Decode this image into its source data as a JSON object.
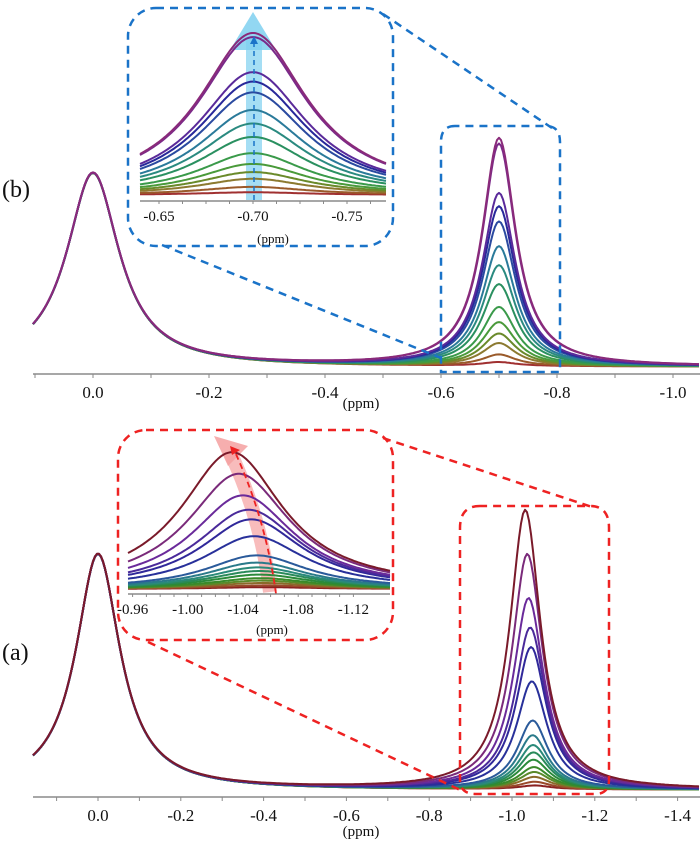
{
  "chart_data": [
    {
      "id": "panel-b",
      "type": "line",
      "panel_label": "(b)",
      "xlabel": "(ppm)",
      "xlim": [
        0.1,
        -1.04
      ],
      "x_ticks": [
        0.0,
        -0.2,
        -0.4,
        -0.6,
        -0.8,
        -1.0
      ],
      "x_tick_labels": [
        "0.0",
        "-0.2",
        "-0.4",
        "-0.6",
        "-0.8",
        "-1.0"
      ],
      "reference_peak": {
        "position_ppm": 0.0,
        "relative_height": 1.0,
        "width_ppm": 0.055
      },
      "series_peak_position_ppm": [
        -0.7,
        -0.7,
        -0.7,
        -0.7,
        -0.7,
        -0.7,
        -0.7,
        -0.7,
        -0.7,
        -0.7,
        -0.7,
        -0.7,
        -0.7,
        -0.7
      ],
      "series_relative_heights": [
        0.02,
        0.06,
        0.12,
        0.17,
        0.23,
        0.31,
        0.43,
        0.53,
        0.63,
        0.76,
        0.84,
        0.91,
        1.17,
        1.2
      ],
      "series_colors": [
        "#a03030",
        "#9a5a2a",
        "#8c7a30",
        "#6a8a2a",
        "#4a9a3a",
        "#3a9a4a",
        "#2a9060",
        "#2a8a80",
        "#2a7a9a",
        "#2a4aa0",
        "#28289a",
        "#5a2a9a",
        "#7a2a8a",
        "#8a2a7a"
      ],
      "series_width_ppm": 0.035,
      "zoom_box_ppm": [
        -0.6,
        -0.8
      ],
      "trend": "increasing peak height at constant shift",
      "arrow_color": "#7fd0f0",
      "box_color": "#1a73c8",
      "inset": {
        "xlim": [
          -0.64,
          -0.765
        ],
        "x_ticks": [
          -0.65,
          -0.7,
          -0.75
        ],
        "x_tick_labels": [
          "-0.65",
          "-0.70",
          "-0.75"
        ],
        "xlabel": "(ppm)"
      }
    },
    {
      "id": "panel-a",
      "type": "line",
      "panel_label": "(a)",
      "xlabel": "(ppm)",
      "xlim": [
        0.15,
        -1.46
      ],
      "x_ticks": [
        0.0,
        -0.2,
        -0.4,
        -0.6,
        -0.8,
        -1.0,
        -1.2,
        -1.4
      ],
      "x_tick_labels": [
        "0.0",
        "-0.2",
        "-0.4",
        "-0.6",
        "-0.8",
        "-1.0",
        "-1.2",
        "-1.4"
      ],
      "reference_peak": {
        "position_ppm": 0.0,
        "relative_height": 1.0,
        "width_ppm": 0.065
      },
      "series_peak_position_ppm": [
        -1.055,
        -1.055,
        -1.054,
        -1.054,
        -1.053,
        -1.052,
        -1.052,
        -1.051,
        -1.05,
        -1.05,
        -1.048,
        -1.046,
        -1.044,
        -1.04,
        -1.037,
        -1.032
      ],
      "series_relative_heights": [
        0.015,
        0.03,
        0.05,
        0.07,
        0.09,
        0.12,
        0.15,
        0.18,
        0.22,
        0.28,
        0.44,
        0.58,
        0.66,
        0.78,
        0.96,
        1.14
      ],
      "series_colors": [
        "#8a2020",
        "#9a4a2a",
        "#8a6a2a",
        "#5a8a2a",
        "#3a8a2a",
        "#2a8a3a",
        "#2a8a5a",
        "#2a8a7a",
        "#2a7a8a",
        "#2a5a9a",
        "#28309a",
        "#30289a",
        "#4a2a9a",
        "#6a2a9a",
        "#7a2a7a",
        "#7a1a2a"
      ],
      "series_width_ppm": 0.045,
      "zoom_box_ppm": [
        -0.9,
        -1.2
      ],
      "trend": "increasing peak height with downfield shift",
      "arrow_color": "#f5a0a0",
      "box_color": "#ee2222",
      "inset": {
        "xlim": [
          -0.953,
          -1.13
        ],
        "x_ticks": [
          -0.96,
          -1.0,
          -1.04,
          -1.08,
          -1.12
        ],
        "x_tick_labels": [
          "-0.96",
          "-1.00",
          "-1.04",
          "-1.08",
          "-1.12"
        ],
        "xlabel": "(ppm)"
      }
    }
  ]
}
